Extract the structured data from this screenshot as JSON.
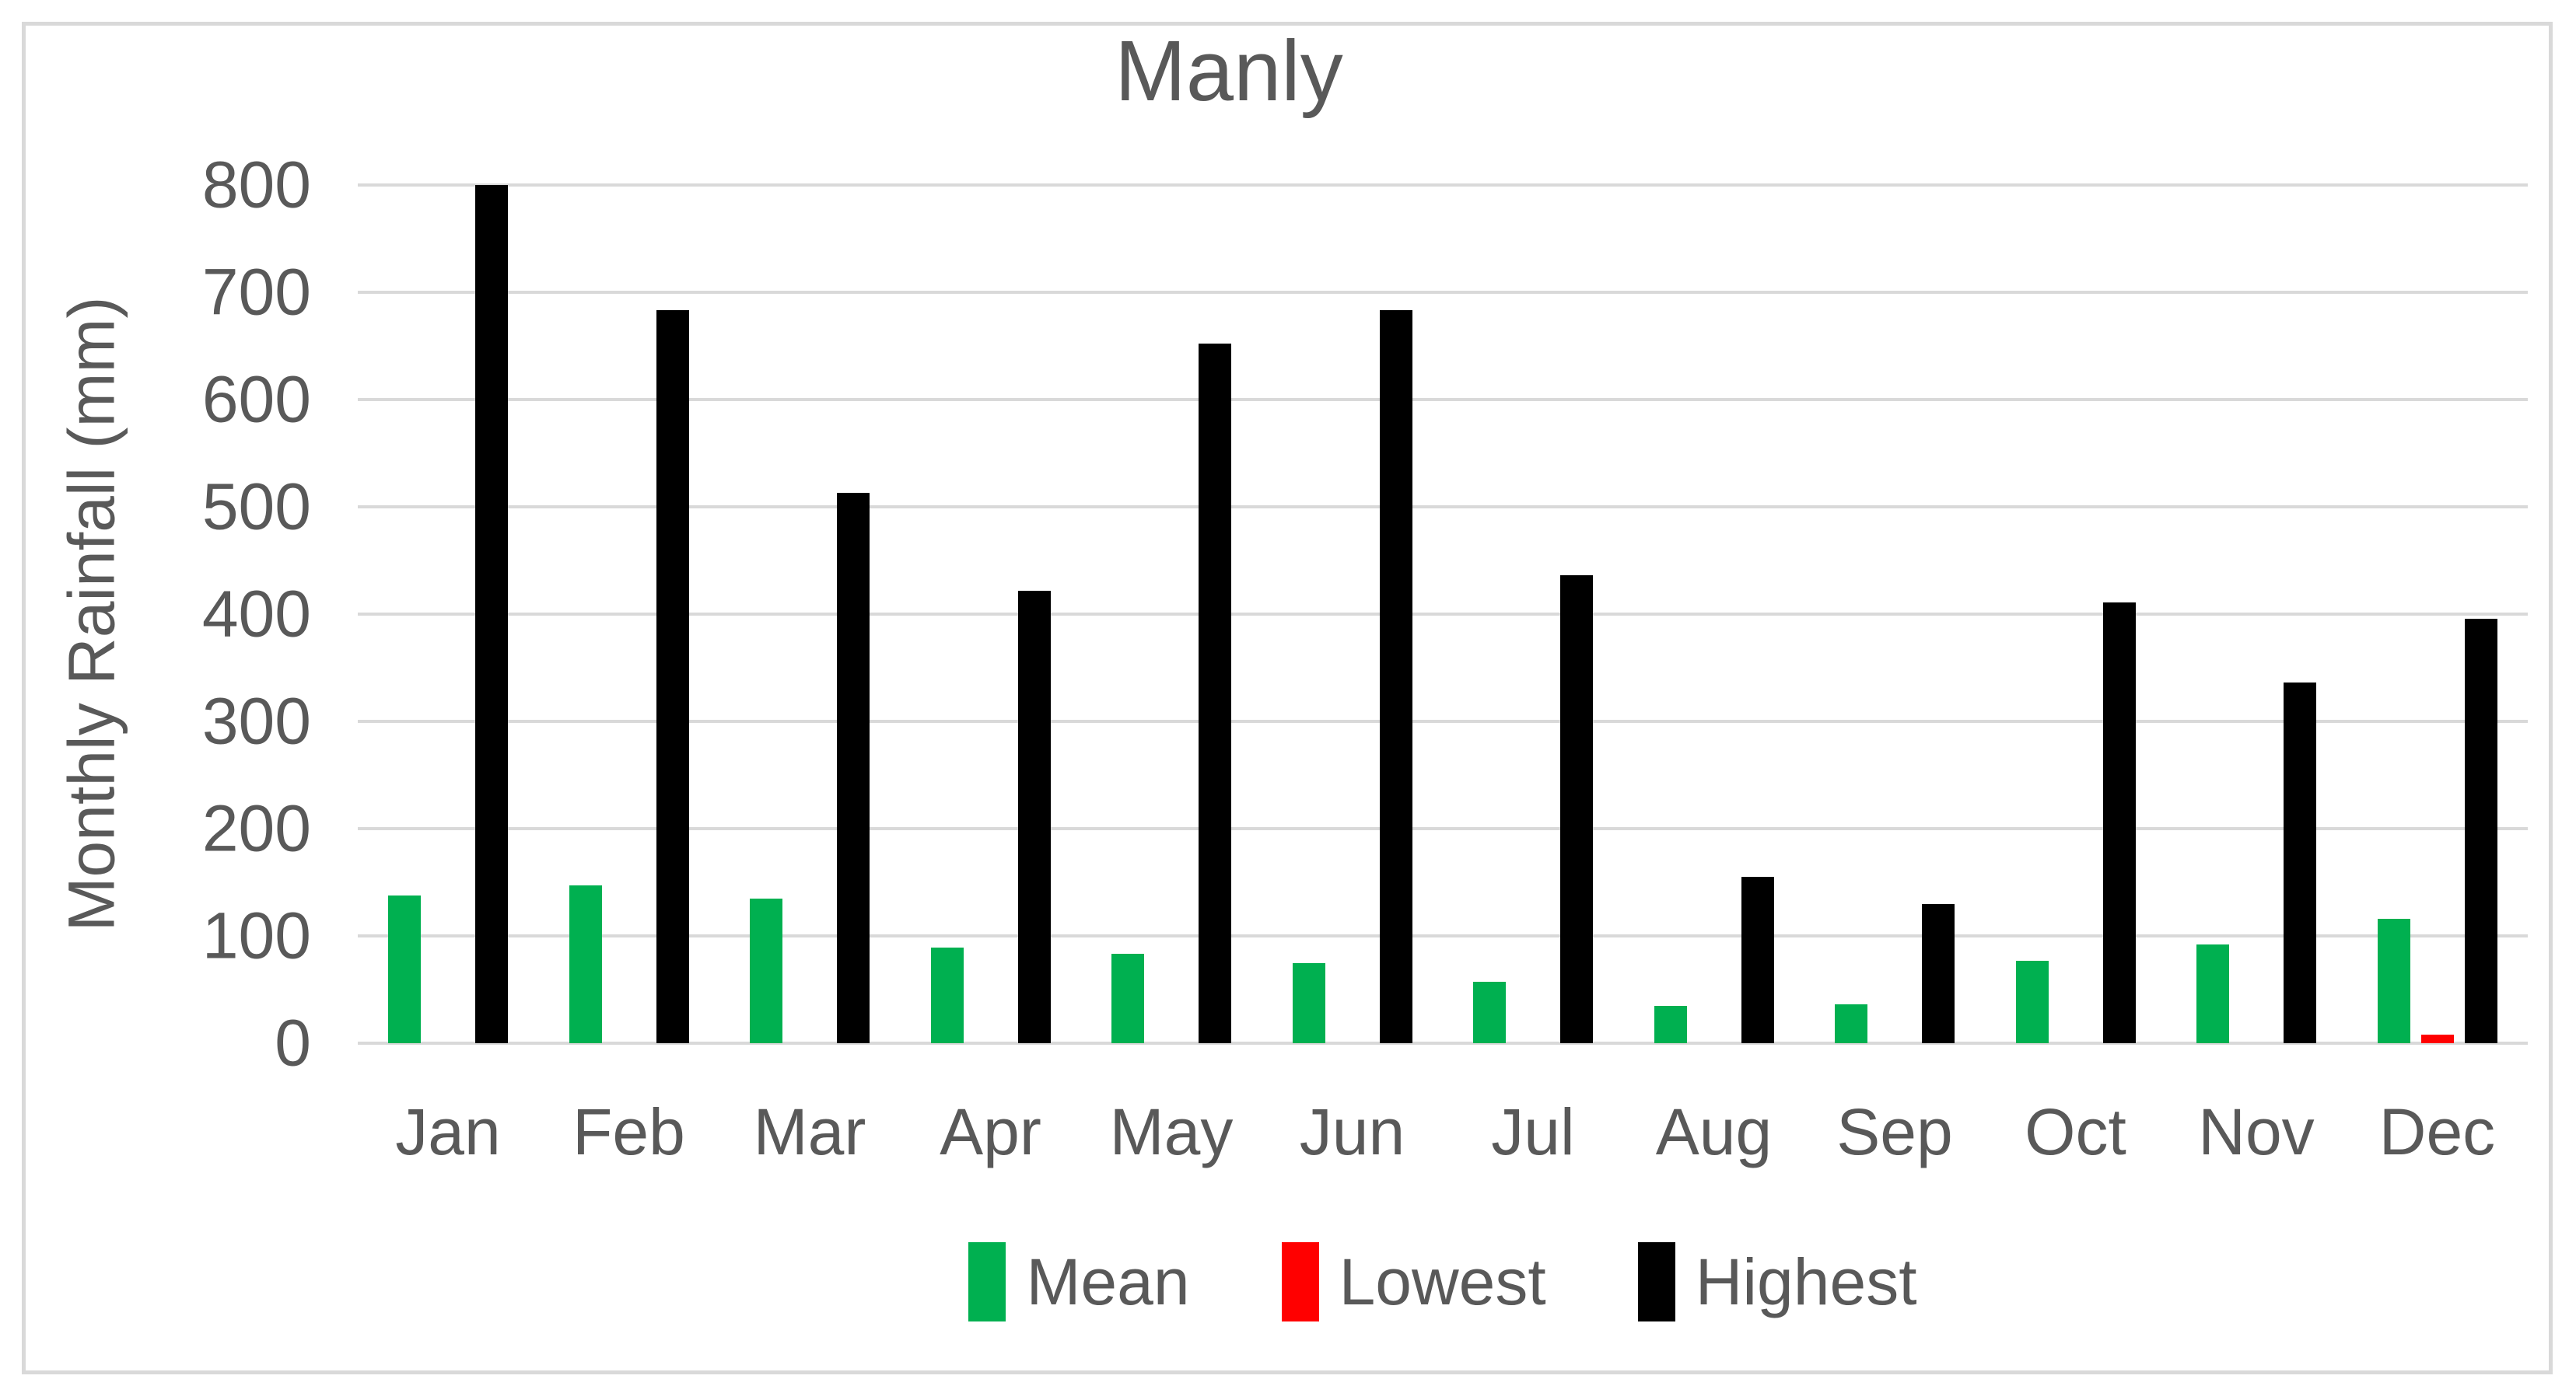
{
  "title": "Manly",
  "colors": {
    "mean": "#00B050",
    "lowest": "#FF0000",
    "highest": "#000000",
    "gridline": "#d9d9d9",
    "axis_text": "#595959",
    "border": "#d9d9d9"
  },
  "chart_data": {
    "type": "bar",
    "title": "Manly",
    "xlabel": "",
    "ylabel": "Monthly Rainfall (mm)",
    "ylim": [
      0,
      800
    ],
    "y_ticks": [
      0,
      100,
      200,
      300,
      400,
      500,
      600,
      700,
      800
    ],
    "grid": "horizontal",
    "legend_position": "bottom",
    "categories": [
      "Jan",
      "Feb",
      "Mar",
      "Apr",
      "May",
      "Jun",
      "Jul",
      "Aug",
      "Sep",
      "Oct",
      "Nov",
      "Dec"
    ],
    "series": [
      {
        "name": "Mean",
        "color": "#00B050",
        "values": [
          138,
          147,
          135,
          89,
          83,
          75,
          57,
          35,
          36,
          77,
          92,
          116
        ]
      },
      {
        "name": "Lowest",
        "color": "#FF0000",
        "values": [
          0,
          0,
          0,
          0,
          0,
          0,
          0,
          0,
          0,
          0,
          0,
          8
        ]
      },
      {
        "name": "Highest",
        "color": "#000000",
        "values": [
          800,
          683,
          513,
          422,
          652,
          683,
          436,
          155,
          130,
          411,
          336,
          396
        ]
      }
    ]
  }
}
